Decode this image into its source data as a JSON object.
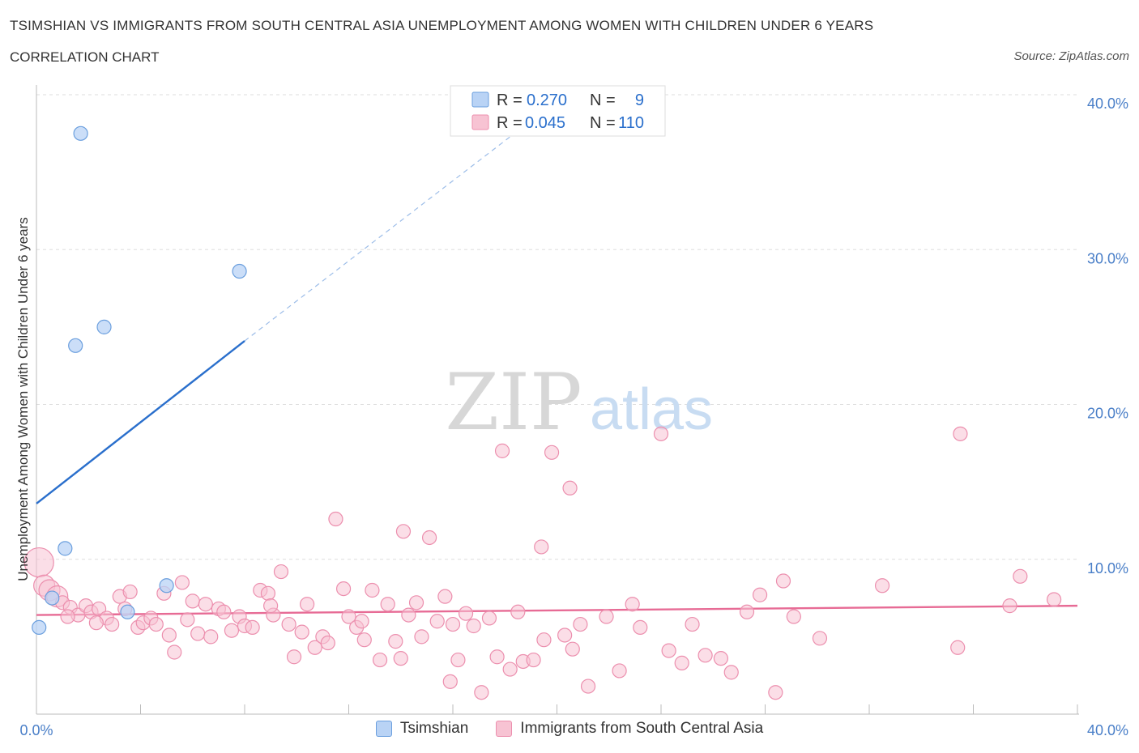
{
  "title": "TSIMSHIAN VS IMMIGRANTS FROM SOUTH CENTRAL ASIA UNEMPLOYMENT AMONG WOMEN WITH CHILDREN UNDER 6 YEARS",
  "subtitle": "CORRELATION CHART",
  "source": "Source: ZipAtlas.com",
  "watermark": {
    "zip": "ZIP",
    "atlas": "atlas"
  },
  "colors": {
    "tsimshian_fill": "#b9d3f5",
    "tsimshian_stroke": "#6b9fde",
    "tsimshian_line": "#2a6fcc",
    "immigrants_fill": "#f7c3d3",
    "immigrants_stroke": "#ec8fae",
    "immigrants_line": "#e76b95",
    "tick_text": "#4a7fc8",
    "grid": "#dddddd"
  },
  "legend_top": {
    "rows": [
      {
        "r_label": "R =",
        "r_value": "0.270",
        "n_label": "N =",
        "n_value": "9"
      },
      {
        "r_label": "R =",
        "r_value": "0.045",
        "n_label": "N =",
        "n_value": "110"
      }
    ]
  },
  "chart_data": {
    "type": "scatter",
    "title": "TSIMSHIAN VS IMMIGRANTS FROM SOUTH CENTRAL ASIA UNEMPLOYMENT AMONG WOMEN WITH CHILDREN UNDER 6 YEARS",
    "xlabel": "",
    "ylabel": "Unemployment Among Women with Children Under 6 years",
    "xlim": [
      0,
      40
    ],
    "ylim": [
      0,
      40
    ],
    "x_tick_labels": [
      "0.0%",
      "40.0%"
    ],
    "y_ticks": [
      10,
      20,
      30,
      40
    ],
    "y_tick_labels": [
      "10.0%",
      "20.0%",
      "30.0%",
      "40.0%"
    ],
    "grid": true,
    "legend_placement": "top-center",
    "series": [
      {
        "name": "Tsimshian",
        "r": 0.27,
        "n": 9,
        "trend": {
          "x0": 0,
          "y0": 13.6,
          "x1": 8.0,
          "y1": 24.1,
          "dash_to_x": 20.3,
          "dash_to_y": 40.0
        },
        "points": [
          [
            1.7,
            37.5
          ],
          [
            7.8,
            28.6
          ],
          [
            2.6,
            25.0
          ],
          [
            1.5,
            23.8
          ],
          [
            1.1,
            10.7
          ],
          [
            5.0,
            8.3
          ],
          [
            0.6,
            7.5
          ],
          [
            3.5,
            6.6
          ],
          [
            0.1,
            5.6
          ]
        ]
      },
      {
        "name": "Immigrants from South Central Asia",
        "r": 0.045,
        "n": 110,
        "trend": {
          "x0": 0,
          "y0": 6.4,
          "x1": 40,
          "y1": 7.0
        },
        "points": [
          [
            0.1,
            9.8
          ],
          [
            0.3,
            8.3
          ],
          [
            0.5,
            8.0
          ],
          [
            0.8,
            7.6
          ],
          [
            1.0,
            7.2
          ],
          [
            1.3,
            6.9
          ],
          [
            1.6,
            6.4
          ],
          [
            1.9,
            7.0
          ],
          [
            2.1,
            6.6
          ],
          [
            2.4,
            6.8
          ],
          [
            2.7,
            6.2
          ],
          [
            2.9,
            5.8
          ],
          [
            3.2,
            7.6
          ],
          [
            3.4,
            6.8
          ],
          [
            3.6,
            7.9
          ],
          [
            3.9,
            5.6
          ],
          [
            4.1,
            5.9
          ],
          [
            4.4,
            6.2
          ],
          [
            4.6,
            5.8
          ],
          [
            4.9,
            7.8
          ],
          [
            5.1,
            5.1
          ],
          [
            5.3,
            4.0
          ],
          [
            5.6,
            8.5
          ],
          [
            5.8,
            6.1
          ],
          [
            6.0,
            7.3
          ],
          [
            6.2,
            5.2
          ],
          [
            6.5,
            7.1
          ],
          [
            6.7,
            5.0
          ],
          [
            7.0,
            6.8
          ],
          [
            7.2,
            6.6
          ],
          [
            7.5,
            5.4
          ],
          [
            7.8,
            6.3
          ],
          [
            8.0,
            5.7
          ],
          [
            8.3,
            5.6
          ],
          [
            8.6,
            8.0
          ],
          [
            8.9,
            7.8
          ],
          [
            9.1,
            6.4
          ],
          [
            9.4,
            9.2
          ],
          [
            9.7,
            5.8
          ],
          [
            9.9,
            3.7
          ],
          [
            10.2,
            5.3
          ],
          [
            10.4,
            7.1
          ],
          [
            10.7,
            4.3
          ],
          [
            11.0,
            5.0
          ],
          [
            11.2,
            4.6
          ],
          [
            11.5,
            12.6
          ],
          [
            11.8,
            8.1
          ],
          [
            12.0,
            6.3
          ],
          [
            12.3,
            5.6
          ],
          [
            12.6,
            4.8
          ],
          [
            12.9,
            8.0
          ],
          [
            13.2,
            3.5
          ],
          [
            13.5,
            7.1
          ],
          [
            13.8,
            4.7
          ],
          [
            14.1,
            11.8
          ],
          [
            14.3,
            6.4
          ],
          [
            14.6,
            7.2
          ],
          [
            14.8,
            5.0
          ],
          [
            15.1,
            11.4
          ],
          [
            15.4,
            6.0
          ],
          [
            15.7,
            7.6
          ],
          [
            15.9,
            2.1
          ],
          [
            16.2,
            3.5
          ],
          [
            16.5,
            6.5
          ],
          [
            16.8,
            5.7
          ],
          [
            17.1,
            1.4
          ],
          [
            17.4,
            6.2
          ],
          [
            17.7,
            3.7
          ],
          [
            17.9,
            17.0
          ],
          [
            18.2,
            2.9
          ],
          [
            18.5,
            6.6
          ],
          [
            18.7,
            3.4
          ],
          [
            19.1,
            3.5
          ],
          [
            19.4,
            10.8
          ],
          [
            19.8,
            16.9
          ],
          [
            20.3,
            5.1
          ],
          [
            20.6,
            4.2
          ],
          [
            20.9,
            5.8
          ],
          [
            21.2,
            1.8
          ],
          [
            21.9,
            6.3
          ],
          [
            22.4,
            2.8
          ],
          [
            22.9,
            7.1
          ],
          [
            23.2,
            5.6
          ],
          [
            24.0,
            18.1
          ],
          [
            24.3,
            4.1
          ],
          [
            24.8,
            3.3
          ],
          [
            25.2,
            5.8
          ],
          [
            25.7,
            3.8
          ],
          [
            26.3,
            3.6
          ],
          [
            26.7,
            2.7
          ],
          [
            27.3,
            6.6
          ],
          [
            27.8,
            7.7
          ],
          [
            28.4,
            1.4
          ],
          [
            28.7,
            8.6
          ],
          [
            29.1,
            6.3
          ],
          [
            30.1,
            4.9
          ],
          [
            32.5,
            8.3
          ],
          [
            35.4,
            4.3
          ],
          [
            37.4,
            7.0
          ],
          [
            39.1,
            7.4
          ],
          [
            37.8,
            8.9
          ],
          [
            35.5,
            18.1
          ],
          [
            20.5,
            14.6
          ],
          [
            19.5,
            4.8
          ],
          [
            16.0,
            5.8
          ],
          [
            14.0,
            3.6
          ],
          [
            12.5,
            6.0
          ],
          [
            9.0,
            7.0
          ],
          [
            1.2,
            6.3
          ],
          [
            2.3,
            5.9
          ]
        ]
      }
    ]
  },
  "bottom_legend": [
    {
      "label": "Tsimshian"
    },
    {
      "label": "Immigrants from South Central Asia"
    }
  ]
}
